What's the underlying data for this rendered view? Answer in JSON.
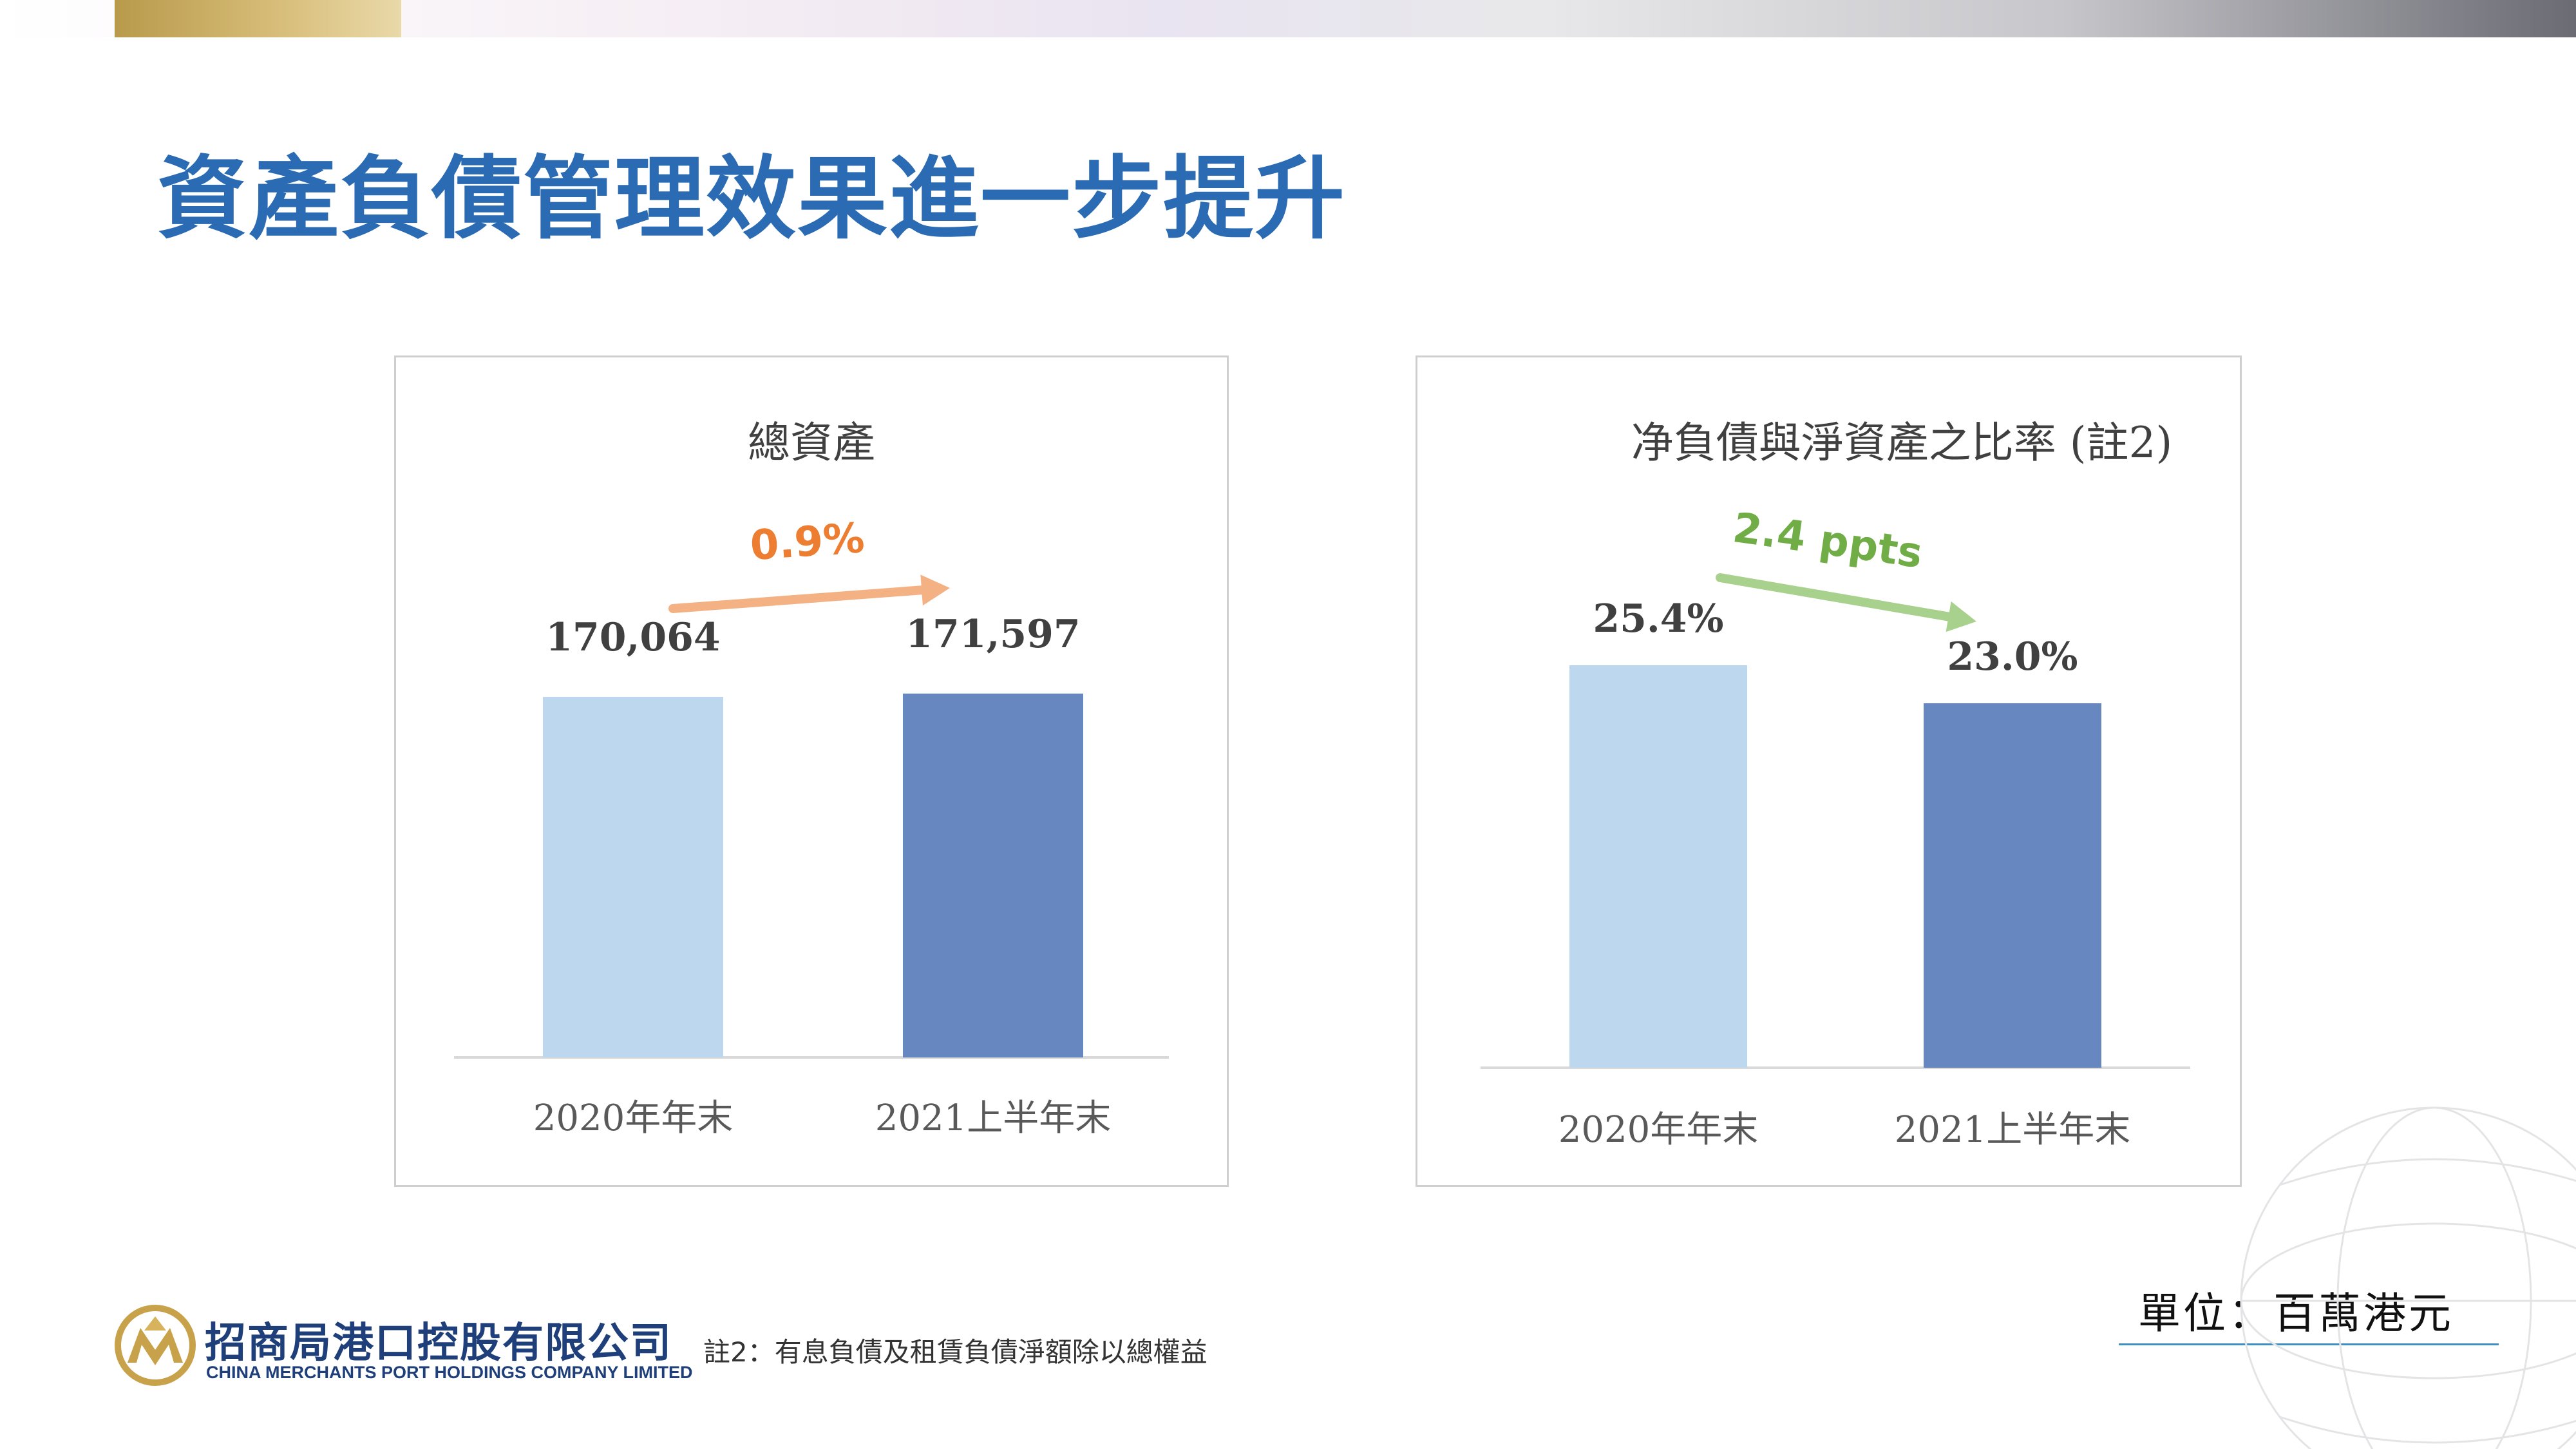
{
  "page": {
    "title": "資產負債管理效果進一步提升",
    "note": "註2：有息負債及租賃負債淨額除以總權益",
    "unit": "單位：百萬港元"
  },
  "company": {
    "name_cn": "招商局港口控股有限公司",
    "name_en": "CHINA MERCHANTS PORT HOLDINGS COMPANY LIMITED",
    "logo_icon": "china-merchants-logo-icon"
  },
  "colors": {
    "title": "#2a6bb4",
    "bar_2020": "#bdd7ee",
    "bar_2021": "#6787c1",
    "up_arrow": "#f4b183",
    "up_label": "#ed7d31",
    "down_arrow": "#a9d18e",
    "down_label": "#70ad47"
  },
  "chart_data": [
    {
      "type": "bar",
      "title": "總資產",
      "categories": [
        "2020年年末",
        "2021上半年末"
      ],
      "values": [
        170064,
        171597
      ],
      "data_labels": [
        "170,064",
        "171,597"
      ],
      "change_label": "0.9%",
      "change_direction": "up",
      "ylim": [
        0,
        171597
      ],
      "grid": false,
      "legend": "none"
    },
    {
      "type": "bar",
      "title": "净負債與淨資產之比率 (註2)",
      "categories": [
        "2020年年末",
        "2021上半年末"
      ],
      "values": [
        25.4,
        23.0
      ],
      "data_labels": [
        "25.4%",
        "23.0%"
      ],
      "change_label": "2.4 ppts",
      "change_direction": "down",
      "ylim": [
        0,
        25.4
      ],
      "grid": false,
      "legend": "none"
    }
  ]
}
